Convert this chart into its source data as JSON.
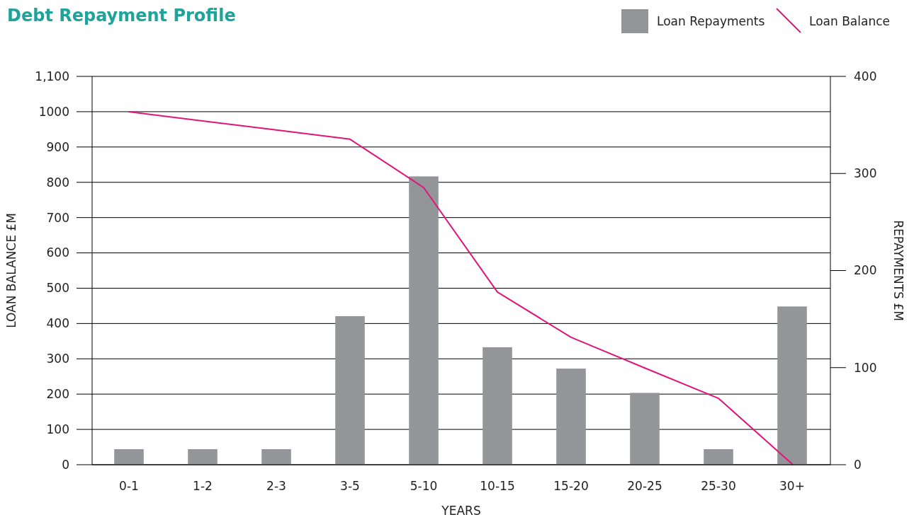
{
  "chart_data": {
    "type": "bar",
    "title": "Debt Repayment Profile",
    "xlabel": "YEARS",
    "ylabel": "LOAN BALANCE £M",
    "y2label": "REPAYMENTS £M",
    "categories": [
      "0-1",
      "1-2",
      "2-3",
      "3-5",
      "5-10",
      "10-15",
      "15-20",
      "20-25",
      "25-30",
      "30+"
    ],
    "series": [
      {
        "name": "Loan Repayments",
        "axis": "y2",
        "color": "#939598",
        "values": [
          16,
          16,
          16,
          153,
          297,
          121,
          99,
          74,
          16,
          163
        ]
      },
      {
        "name": "Loan Balance",
        "type": "line",
        "color": "#e0157a",
        "values": [
          1000,
          974,
          948,
          922,
          785,
          489,
          361,
          274,
          188,
          2
        ]
      }
    ],
    "ylim": [
      0,
      1100
    ],
    "yticks": [
      0,
      100,
      200,
      300,
      400,
      500,
      600,
      700,
      800,
      900,
      1000,
      {
        "value": 1100,
        "label": "1,100"
      }
    ],
    "y2lim": [
      0,
      400
    ],
    "y2ticks": [
      0,
      100,
      200,
      300,
      400
    ],
    "grid": "y",
    "legend": "top right"
  }
}
